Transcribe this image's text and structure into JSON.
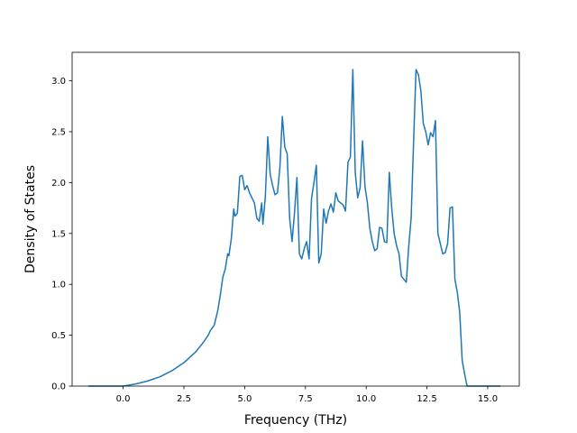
{
  "chart_data": {
    "type": "line",
    "title": "",
    "xlabel": "Frequency (THz)",
    "ylabel": "Density of States",
    "xlim": [
      -2.1,
      16.3
    ],
    "ylim": [
      0.0,
      3.28
    ],
    "xticks": [
      0.0,
      2.5,
      5.0,
      7.5,
      10.0,
      12.5,
      15.0
    ],
    "xtick_labels": [
      "0.0",
      "2.5",
      "5.0",
      "7.5",
      "10.0",
      "12.5",
      "15.0"
    ],
    "yticks": [
      0.0,
      0.5,
      1.0,
      1.5,
      2.0,
      2.5,
      3.0
    ],
    "ytick_labels": [
      "0.0",
      "0.5",
      "1.0",
      "1.5",
      "2.0",
      "2.5",
      "3.0"
    ],
    "grid": false,
    "line_color": "#1f77b4",
    "series": [
      {
        "x": [
          -1.4,
          -1.0,
          -0.5,
          0.0,
          0.5,
          1.0,
          1.5,
          2.0,
          2.5,
          3.0,
          3.3,
          3.5,
          3.6,
          3.75,
          3.9,
          4.0,
          4.1,
          4.2,
          4.3,
          4.35,
          4.45,
          4.55,
          4.6,
          4.7,
          4.8,
          4.9,
          5.0,
          5.1,
          5.2,
          5.3,
          5.4,
          5.5,
          5.6,
          5.7,
          5.75,
          5.85,
          5.95,
          6.05,
          6.15,
          6.25,
          6.35,
          6.45,
          6.55,
          6.65,
          6.75,
          6.85,
          6.95,
          7.05,
          7.15,
          7.25,
          7.35,
          7.45,
          7.55,
          7.65,
          7.75,
          7.85,
          7.95,
          8.05,
          8.15,
          8.25,
          8.35,
          8.45,
          8.55,
          8.65,
          8.75,
          8.85,
          8.95,
          9.05,
          9.15,
          9.25,
          9.35,
          9.45,
          9.55,
          9.65,
          9.75,
          9.85,
          9.95,
          10.05,
          10.15,
          10.25,
          10.35,
          10.45,
          10.55,
          10.65,
          10.75,
          10.85,
          10.95,
          11.05,
          11.15,
          11.25,
          11.35,
          11.45,
          11.55,
          11.65,
          11.75,
          11.85,
          11.95,
          12.05,
          12.15,
          12.25,
          12.35,
          12.45,
          12.55,
          12.65,
          12.75,
          12.85,
          12.95,
          13.05,
          13.15,
          13.25,
          13.35,
          13.45,
          13.55,
          13.65,
          13.75,
          13.85,
          13.95,
          14.05,
          14.15,
          14.25,
          14.6,
          15.0,
          15.5
        ],
        "y": [
          0.0,
          0.0,
          0.0,
          0.0,
          0.02,
          0.05,
          0.09,
          0.15,
          0.23,
          0.34,
          0.43,
          0.5,
          0.55,
          0.6,
          0.75,
          0.9,
          1.07,
          1.15,
          1.3,
          1.28,
          1.45,
          1.74,
          1.67,
          1.7,
          2.06,
          2.07,
          1.93,
          1.97,
          1.9,
          1.85,
          1.8,
          1.65,
          1.62,
          1.8,
          1.59,
          1.86,
          2.45,
          2.08,
          1.97,
          1.88,
          1.9,
          2.15,
          2.65,
          2.35,
          2.28,
          1.65,
          1.42,
          1.7,
          2.05,
          1.3,
          1.25,
          1.35,
          1.42,
          1.25,
          1.84,
          2.0,
          2.17,
          1.21,
          1.3,
          1.74,
          1.6,
          1.72,
          1.79,
          1.71,
          1.9,
          1.82,
          1.8,
          1.78,
          1.72,
          2.2,
          2.25,
          3.11,
          2.1,
          1.85,
          1.95,
          2.41,
          1.96,
          1.8,
          1.55,
          1.42,
          1.33,
          1.35,
          1.56,
          1.55,
          1.42,
          1.41,
          2.1,
          1.75,
          1.5,
          1.38,
          1.3,
          1.08,
          1.05,
          1.02,
          1.37,
          1.65,
          2.4,
          3.11,
          3.06,
          2.9,
          2.58,
          2.5,
          2.37,
          2.49,
          2.45,
          2.61,
          1.5,
          1.4,
          1.3,
          1.31,
          1.4,
          1.75,
          1.76,
          1.05,
          0.92,
          0.72,
          0.25,
          0.12,
          0.0,
          0.0,
          0.0,
          0.0,
          0.0
        ]
      }
    ]
  }
}
